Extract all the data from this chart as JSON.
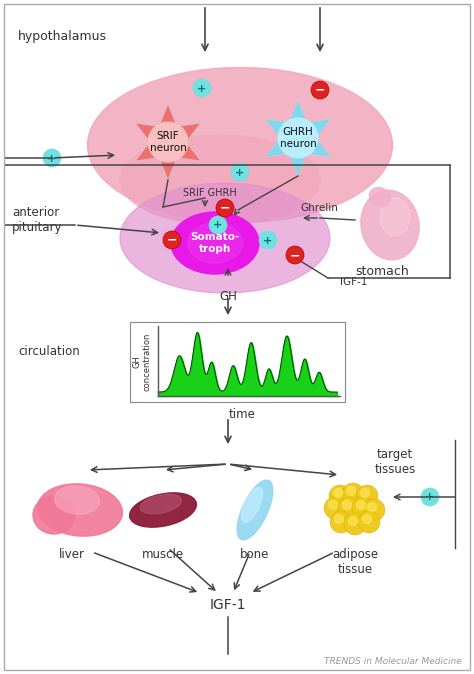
{
  "bg_color": "#ffffff",
  "border_color": "#aaaaaa",
  "hypothalamus_text": "hypothalamus",
  "anterior_pituitary_text": "anterior\npituitary",
  "circulation_text": "circulation",
  "stomach_text": "stomach",
  "target_tissues_text": "target\ntissues",
  "srif_text": "SRIF\nneuron",
  "ghrh_text": "GHRH\nneuron",
  "somatotroph_text": "Somato-\ntroph",
  "gh_text": "GH",
  "igf1_feedback_text": "IGF-1",
  "gh_conc_text": "GH\nconcentration",
  "time_text": "time",
  "ghrelin_text": "Ghrelin",
  "srif_ghrh_text": "SRIF GHRH",
  "liver_text": "liver",
  "muscle_text": "muscle",
  "bone_text": "bone",
  "adipose_text": "adipose\ntissue",
  "igf1_bottom_text": "IGF-1",
  "trends_text": "TRENDS in Molecular Medicine",
  "hypo_blob_color": "#f2a8bc",
  "hypo_blob2_color": "#f0b8c8",
  "pit_blob_color": "#e090d0",
  "srif_neuron_body": "#f07070",
  "srif_neuron_center": "#f8c0c0",
  "ghrh_neuron_body": "#80d8f0",
  "ghrh_neuron_center": "#b8eeff",
  "somatotroph_color": "#e818e8",
  "stomach_color": "#f0b0c8",
  "liver_color": "#f07898",
  "liver_highlight": "#f8b0c8",
  "muscle_dark": "#8b1a3a",
  "muscle_light": "#c06080",
  "bone_color": "#90d8f0",
  "bone_light": "#c8eeff",
  "adipose_color": "#f0c818",
  "adipose_highlight": "#ffe860",
  "gh_pulse_color": "#00cc00",
  "pos_circle_color": "#70e0e0",
  "neg_circle_color": "#dd2222",
  "arrow_color": "#444444",
  "text_color": "#333333",
  "graph_bg": "#ffffff",
  "graph_border": "#888888"
}
